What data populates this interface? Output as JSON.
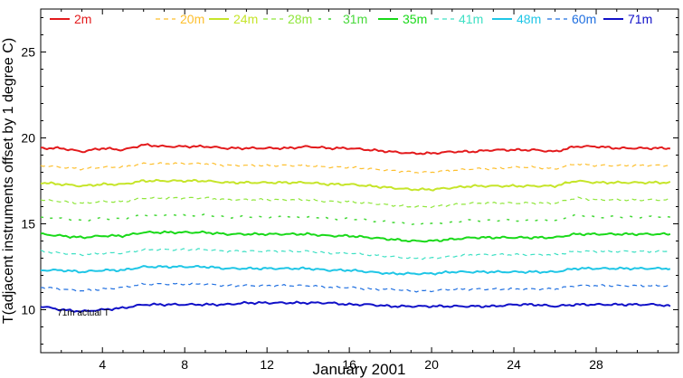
{
  "chart_data": {
    "type": "line",
    "title": "",
    "xlabel": "January 2001",
    "ylabel": "T(adjacent instruments offset by 1 degree C)",
    "xlim": [
      1,
      32
    ],
    "ylim": [
      7.5,
      27.5
    ],
    "x_ticks": [
      4,
      8,
      12,
      16,
      20,
      24,
      28
    ],
    "x_tick_labels": [
      "4",
      "8",
      "12",
      "16",
      "20",
      "24",
      "28"
    ],
    "y_ticks": [
      10,
      15,
      20,
      25
    ],
    "y_tick_labels": [
      "10",
      "15",
      "20",
      "25"
    ],
    "grid": false,
    "legend_position": "top",
    "annotation": "71m actual T",
    "annotation_anchor": {
      "x": 1.8,
      "y": 9.65
    },
    "x": [
      1,
      2,
      3,
      4,
      5,
      6,
      7,
      8,
      9,
      10,
      11,
      12,
      13,
      14,
      15,
      16,
      17,
      18,
      19,
      20,
      21,
      22,
      23,
      24,
      25,
      26,
      27,
      28,
      29,
      30,
      31,
      31.6
    ],
    "series": [
      {
        "name": "2m",
        "color": "#e31a1c",
        "dash": "solid",
        "width": 2,
        "values": [
          19.4,
          19.4,
          19.2,
          19.4,
          19.3,
          19.6,
          19.5,
          19.5,
          19.5,
          19.4,
          19.4,
          19.4,
          19.4,
          19.5,
          19.4,
          19.4,
          19.3,
          19.2,
          19.1,
          19.1,
          19.2,
          19.2,
          19.3,
          19.3,
          19.3,
          19.2,
          19.5,
          19.5,
          19.4,
          19.4,
          19.4,
          19.4
        ]
      },
      {
        "name": "20m",
        "color": "#fdbf2d",
        "dash": "dash",
        "width": 1.2,
        "values": [
          18.4,
          18.3,
          18.2,
          18.3,
          18.3,
          18.5,
          18.5,
          18.5,
          18.5,
          18.4,
          18.4,
          18.4,
          18.4,
          18.4,
          18.3,
          18.3,
          18.2,
          18.1,
          18.0,
          18.0,
          18.1,
          18.2,
          18.2,
          18.3,
          18.3,
          18.2,
          18.5,
          18.4,
          18.4,
          18.4,
          18.4,
          18.4
        ]
      },
      {
        "name": "24m",
        "color": "#c6e52a",
        "dash": "solid",
        "width": 2,
        "values": [
          17.4,
          17.3,
          17.2,
          17.3,
          17.3,
          17.5,
          17.5,
          17.5,
          17.5,
          17.4,
          17.4,
          17.4,
          17.4,
          17.4,
          17.3,
          17.3,
          17.2,
          17.1,
          17.0,
          17.0,
          17.1,
          17.2,
          17.2,
          17.2,
          17.2,
          17.2,
          17.5,
          17.4,
          17.4,
          17.4,
          17.4,
          17.4
        ]
      },
      {
        "name": "28m",
        "color": "#8fe63a",
        "dash": "dash",
        "width": 1.2,
        "values": [
          16.4,
          16.3,
          16.2,
          16.3,
          16.3,
          16.5,
          16.5,
          16.5,
          16.5,
          16.4,
          16.4,
          16.4,
          16.4,
          16.4,
          16.3,
          16.3,
          16.2,
          16.1,
          16.0,
          16.0,
          16.1,
          16.2,
          16.2,
          16.2,
          16.2,
          16.2,
          16.5,
          16.4,
          16.4,
          16.4,
          16.4,
          16.4
        ]
      },
      {
        "name": "31m",
        "color": "#47d93a",
        "dash": "sparse",
        "width": 1.5,
        "values": [
          15.4,
          15.3,
          15.2,
          15.3,
          15.3,
          15.5,
          15.5,
          15.5,
          15.5,
          15.4,
          15.4,
          15.4,
          15.4,
          15.4,
          15.3,
          15.3,
          15.2,
          15.1,
          15.0,
          15.0,
          15.1,
          15.2,
          15.2,
          15.2,
          15.2,
          15.2,
          15.5,
          15.4,
          15.4,
          15.4,
          15.4,
          15.4
        ]
      },
      {
        "name": "35m",
        "color": "#19d919",
        "dash": "solid",
        "width": 2,
        "values": [
          14.4,
          14.3,
          14.2,
          14.3,
          14.3,
          14.5,
          14.5,
          14.5,
          14.5,
          14.4,
          14.4,
          14.4,
          14.4,
          14.4,
          14.3,
          14.3,
          14.2,
          14.1,
          14.0,
          14.0,
          14.1,
          14.2,
          14.2,
          14.2,
          14.2,
          14.2,
          14.4,
          14.4,
          14.4,
          14.4,
          14.4,
          14.4
        ]
      },
      {
        "name": "41m",
        "color": "#3ee0c4",
        "dash": "dash",
        "width": 1.2,
        "values": [
          13.4,
          13.3,
          13.2,
          13.3,
          13.3,
          13.5,
          13.5,
          13.5,
          13.5,
          13.4,
          13.4,
          13.4,
          13.4,
          13.4,
          13.3,
          13.3,
          13.2,
          13.1,
          13.0,
          13.0,
          13.1,
          13.2,
          13.2,
          13.2,
          13.2,
          13.2,
          13.4,
          13.4,
          13.4,
          13.4,
          13.4,
          13.4
        ]
      },
      {
        "name": "48m",
        "color": "#1fc6e6",
        "dash": "solid",
        "width": 2,
        "values": [
          12.3,
          12.3,
          12.2,
          12.3,
          12.3,
          12.5,
          12.5,
          12.5,
          12.5,
          12.4,
          12.4,
          12.4,
          12.4,
          12.4,
          12.3,
          12.3,
          12.2,
          12.1,
          12.1,
          12.1,
          12.2,
          12.2,
          12.2,
          12.2,
          12.2,
          12.2,
          12.4,
          12.4,
          12.4,
          12.4,
          12.4,
          12.4
        ]
      },
      {
        "name": "60m",
        "color": "#1f6fe0",
        "dash": "dash",
        "width": 1.2,
        "values": [
          11.3,
          11.2,
          11.1,
          11.2,
          11.3,
          11.5,
          11.5,
          11.5,
          11.5,
          11.4,
          11.4,
          11.4,
          11.4,
          11.4,
          11.3,
          11.3,
          11.2,
          11.2,
          11.1,
          11.1,
          11.2,
          11.2,
          11.2,
          11.2,
          11.2,
          11.2,
          11.4,
          11.4,
          11.4,
          11.4,
          11.4,
          11.4
        ]
      },
      {
        "name": "71m",
        "color": "#1010c8",
        "dash": "solid",
        "width": 2,
        "values": [
          10.2,
          10.0,
          9.9,
          10.0,
          10.1,
          10.3,
          10.3,
          10.3,
          10.3,
          10.3,
          10.4,
          10.4,
          10.4,
          10.4,
          10.4,
          10.3,
          10.3,
          10.2,
          10.2,
          10.2,
          10.2,
          10.2,
          10.2,
          10.3,
          10.3,
          10.2,
          10.3,
          10.3,
          10.3,
          10.3,
          10.3,
          10.2
        ]
      }
    ]
  }
}
